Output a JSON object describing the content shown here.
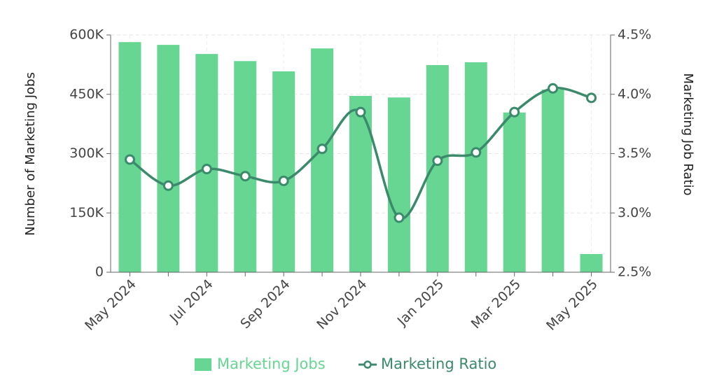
{
  "chart_data": {
    "type": "bar_line",
    "categories": [
      "May 2024",
      null,
      "Jul 2024",
      null,
      "Sep 2024",
      null,
      "Nov 2024",
      null,
      "Jan 2025",
      null,
      "Mar 2025",
      null,
      "May 2025"
    ],
    "series": [
      {
        "name": "Marketing Jobs",
        "type": "bar",
        "color": "#66d692",
        "values": [
          582000,
          575000,
          552000,
          534000,
          508000,
          566000,
          446000,
          442000,
          524000,
          531000,
          404000,
          462000,
          46000
        ]
      },
      {
        "name": "Marketing Ratio",
        "type": "line",
        "axis": "y2",
        "color": "#3b8a6b",
        "values": [
          3.45,
          3.23,
          3.37,
          3.31,
          3.27,
          3.54,
          3.85,
          2.96,
          3.44,
          3.51,
          3.85,
          4.05,
          3.97
        ]
      }
    ],
    "ylabel": "Number of Marketing Jobs",
    "y2label": "Marketing Job Ratio",
    "ylim": [
      0,
      600000
    ],
    "yticks": [
      0,
      {
        "value": 150000,
        "label": "150K"
      },
      {
        "value": 300000,
        "label": "300K"
      },
      {
        "value": 450000,
        "label": "450K"
      },
      {
        "value": 600000,
        "label": "600K"
      }
    ],
    "y2lim": [
      2.5,
      4.5
    ],
    "y2ticks": [
      {
        "value": 2.5,
        "label": "2.5%"
      },
      {
        "value": 3.0,
        "label": "3.0%"
      },
      {
        "value": 3.5,
        "label": "3.5%"
      },
      {
        "value": 4.0,
        "label": "4.0%"
      },
      {
        "value": 4.5,
        "label": "4.5%"
      }
    ],
    "grid": true
  }
}
